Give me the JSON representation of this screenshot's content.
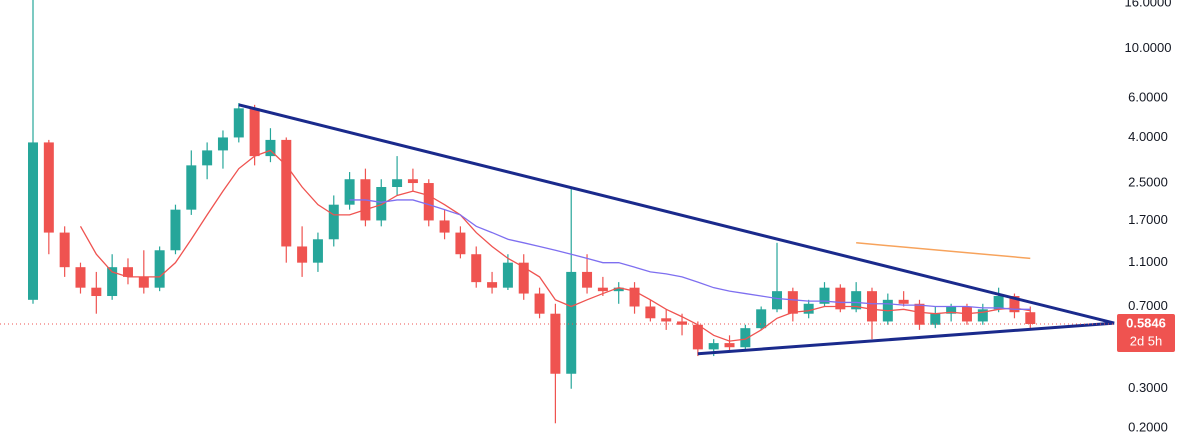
{
  "chart_data": {
    "type": "candlestick",
    "log_scale": true,
    "ylim": [
      0.19,
      16.5
    ],
    "yticks": [
      {
        "value": 0.2,
        "label": "0.2000"
      },
      {
        "value": 0.3,
        "label": "0.3000"
      },
      {
        "value": 0.7,
        "label": "0.7000"
      },
      {
        "value": 1.1,
        "label": "1.1000"
      },
      {
        "value": 1.7,
        "label": "1.7000"
      },
      {
        "value": 2.5,
        "label": "2.5000"
      },
      {
        "value": 4,
        "label": "4.0000"
      },
      {
        "value": 6,
        "label": "6.0000"
      },
      {
        "value": 10,
        "label": "10.0000"
      },
      {
        "value": 16,
        "label": "16.0000"
      }
    ],
    "up_color": "#26a69a",
    "down_color": "#ef5350",
    "ohlc": [
      [
        0.75,
        17,
        0.72,
        3.8
      ],
      [
        3.8,
        3.9,
        1.2,
        1.5
      ],
      [
        1.5,
        1.6,
        0.95,
        1.05
      ],
      [
        1.05,
        1.1,
        0.8,
        0.85
      ],
      [
        0.85,
        1.0,
        0.65,
        0.78
      ],
      [
        0.78,
        1.2,
        0.75,
        1.05
      ],
      [
        1.05,
        1.15,
        0.88,
        0.95
      ],
      [
        0.95,
        1.25,
        0.8,
        0.85
      ],
      [
        0.85,
        1.3,
        0.82,
        1.25
      ],
      [
        1.25,
        2.0,
        1.2,
        1.9
      ],
      [
        1.9,
        3.5,
        1.8,
        3.0
      ],
      [
        3.0,
        3.8,
        2.6,
        3.5
      ],
      [
        3.5,
        4.3,
        2.9,
        4.0
      ],
      [
        4.0,
        5.7,
        3.8,
        5.4
      ],
      [
        5.4,
        5.6,
        3.0,
        3.3
      ],
      [
        3.3,
        4.4,
        3.1,
        3.9
      ],
      [
        3.9,
        4.0,
        1.1,
        1.3
      ],
      [
        1.3,
        1.6,
        0.95,
        1.1
      ],
      [
        1.1,
        1.5,
        1.0,
        1.4
      ],
      [
        1.4,
        2.2,
        1.3,
        2.0
      ],
      [
        2.0,
        2.8,
        1.9,
        2.6
      ],
      [
        2.6,
        2.9,
        1.6,
        1.7
      ],
      [
        1.7,
        2.6,
        1.6,
        2.4
      ],
      [
        2.4,
        3.3,
        2.2,
        2.6
      ],
      [
        2.6,
        2.9,
        2.3,
        2.5
      ],
      [
        2.5,
        2.6,
        1.6,
        1.7
      ],
      [
        1.7,
        1.9,
        1.4,
        1.5
      ],
      [
        1.5,
        1.6,
        1.15,
        1.2
      ],
      [
        1.2,
        1.3,
        0.85,
        0.9
      ],
      [
        0.9,
        1.0,
        0.8,
        0.85
      ],
      [
        0.85,
        1.2,
        0.83,
        1.1
      ],
      [
        1.1,
        1.2,
        0.75,
        0.8
      ],
      [
        0.8,
        0.85,
        0.62,
        0.65
      ],
      [
        0.65,
        0.72,
        0.21,
        0.35
      ],
      [
        0.35,
        2.4,
        0.3,
        1.0
      ],
      [
        1.0,
        1.2,
        0.8,
        0.85
      ],
      [
        0.85,
        0.95,
        0.78,
        0.82
      ],
      [
        0.82,
        0.9,
        0.72,
        0.85
      ],
      [
        0.85,
        0.9,
        0.65,
        0.7
      ],
      [
        0.7,
        0.75,
        0.6,
        0.62
      ],
      [
        0.62,
        0.68,
        0.55,
        0.6
      ],
      [
        0.6,
        0.65,
        0.52,
        0.58
      ],
      [
        0.58,
        0.6,
        0.42,
        0.45
      ],
      [
        0.45,
        0.5,
        0.42,
        0.48
      ],
      [
        0.48,
        0.52,
        0.44,
        0.46
      ],
      [
        0.46,
        0.58,
        0.45,
        0.56
      ],
      [
        0.56,
        0.7,
        0.55,
        0.68
      ],
      [
        0.68,
        1.35,
        0.66,
        0.82
      ],
      [
        0.82,
        0.85,
        0.6,
        0.65
      ],
      [
        0.65,
        0.75,
        0.62,
        0.72
      ],
      [
        0.72,
        0.9,
        0.7,
        0.85
      ],
      [
        0.85,
        0.88,
        0.66,
        0.68
      ],
      [
        0.68,
        0.9,
        0.66,
        0.82
      ],
      [
        0.82,
        0.85,
        0.5,
        0.6
      ],
      [
        0.6,
        0.8,
        0.58,
        0.75
      ],
      [
        0.75,
        0.82,
        0.7,
        0.72
      ],
      [
        0.72,
        0.75,
        0.55,
        0.58
      ],
      [
        0.58,
        0.7,
        0.56,
        0.65
      ],
      [
        0.65,
        0.72,
        0.6,
        0.7
      ],
      [
        0.7,
        0.72,
        0.58,
        0.6
      ],
      [
        0.6,
        0.72,
        0.58,
        0.68
      ],
      [
        0.68,
        0.85,
        0.66,
        0.78
      ],
      [
        0.78,
        0.8,
        0.62,
        0.66
      ],
      [
        0.66,
        0.7,
        0.55,
        0.5846
      ]
    ],
    "series": [
      {
        "color": "#ef5350",
        "values": [
          null,
          null,
          null,
          1.6,
          1.2,
          1.0,
          0.95,
          0.95,
          0.95,
          1.1,
          1.4,
          1.8,
          2.3,
          2.9,
          3.3,
          3.5,
          3.0,
          2.4,
          2.0,
          1.8,
          1.8,
          1.9,
          2.0,
          2.2,
          2.3,
          2.2,
          2.0,
          1.8,
          1.5,
          1.3,
          1.15,
          1.05,
          0.95,
          0.75,
          0.7,
          0.75,
          0.8,
          0.85,
          0.82,
          0.75,
          0.68,
          0.63,
          0.58,
          0.52,
          0.49,
          0.5,
          0.55,
          0.62,
          0.66,
          0.67,
          0.7,
          0.7,
          0.7,
          0.68,
          0.67,
          0.68,
          0.66,
          0.65,
          0.66,
          0.65,
          0.66,
          0.68,
          0.69,
          0.67
        ]
      },
      {
        "color": "#7e6ff0",
        "values": [
          null,
          null,
          null,
          null,
          null,
          null,
          null,
          null,
          null,
          null,
          null,
          null,
          null,
          null,
          null,
          null,
          null,
          null,
          null,
          null,
          2.1,
          2.1,
          2.05,
          2.1,
          2.1,
          2.0,
          1.9,
          1.8,
          1.6,
          1.5,
          1.4,
          1.35,
          1.3,
          1.25,
          1.2,
          1.15,
          1.1,
          1.1,
          1.05,
          1.0,
          0.98,
          0.95,
          0.9,
          0.85,
          0.82,
          0.8,
          0.78,
          0.76,
          0.75,
          0.74,
          0.74,
          0.73,
          0.73,
          0.72,
          0.72,
          0.71,
          0.71,
          0.7,
          0.7,
          0.7,
          0.69,
          0.69,
          0.68,
          0.68
        ]
      }
    ],
    "lines": [
      {
        "color": "#1a2a8c",
        "x": [
          13,
          68.3
        ],
        "y": [
          5.6,
          0.59
        ]
      },
      {
        "color": "#1a2a8c",
        "x": [
          42,
          68.3
        ],
        "y": [
          0.43,
          0.59
        ]
      },
      {
        "color": "#f7a35c",
        "x": [
          52,
          63
        ],
        "y": [
          1.35,
          1.15
        ]
      }
    ],
    "last_price": 0.5846,
    "last_price_label": "0.5846",
    "countdown": "2d 5h"
  }
}
